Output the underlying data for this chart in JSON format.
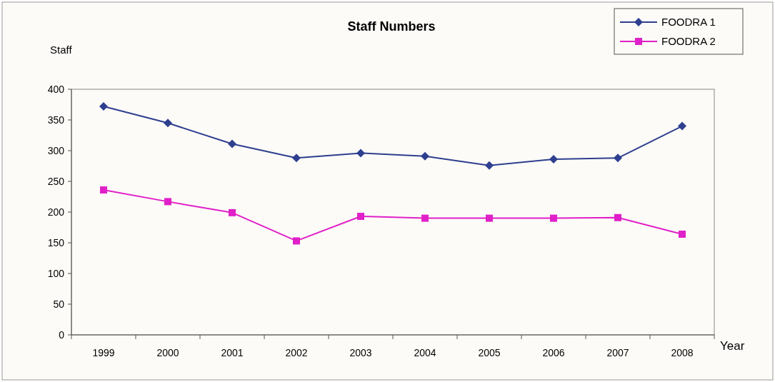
{
  "chart_data": {
    "type": "line",
    "title": "Staff Numbers",
    "ylabel": "Staff",
    "xlabel": "Year",
    "categories": [
      "1999",
      "2000",
      "2001",
      "2002",
      "2003",
      "2004",
      "2005",
      "2006",
      "2007",
      "2008"
    ],
    "series": [
      {
        "name": "FOODRA 1",
        "color": "#2e3f8f",
        "marker": "diamond",
        "values": [
          372,
          345,
          311,
          288,
          296,
          291,
          276,
          286,
          288,
          340
        ]
      },
      {
        "name": "FOODRA 2",
        "color": "#e020c8",
        "marker": "square",
        "values": [
          236,
          217,
          199,
          153,
          193,
          190,
          190,
          190,
          191,
          164
        ]
      }
    ],
    "ylim": [
      0,
      400
    ],
    "yticks": [
      0,
      50,
      100,
      150,
      200,
      250,
      300,
      350,
      400
    ],
    "grid": false,
    "legend": "top right"
  }
}
